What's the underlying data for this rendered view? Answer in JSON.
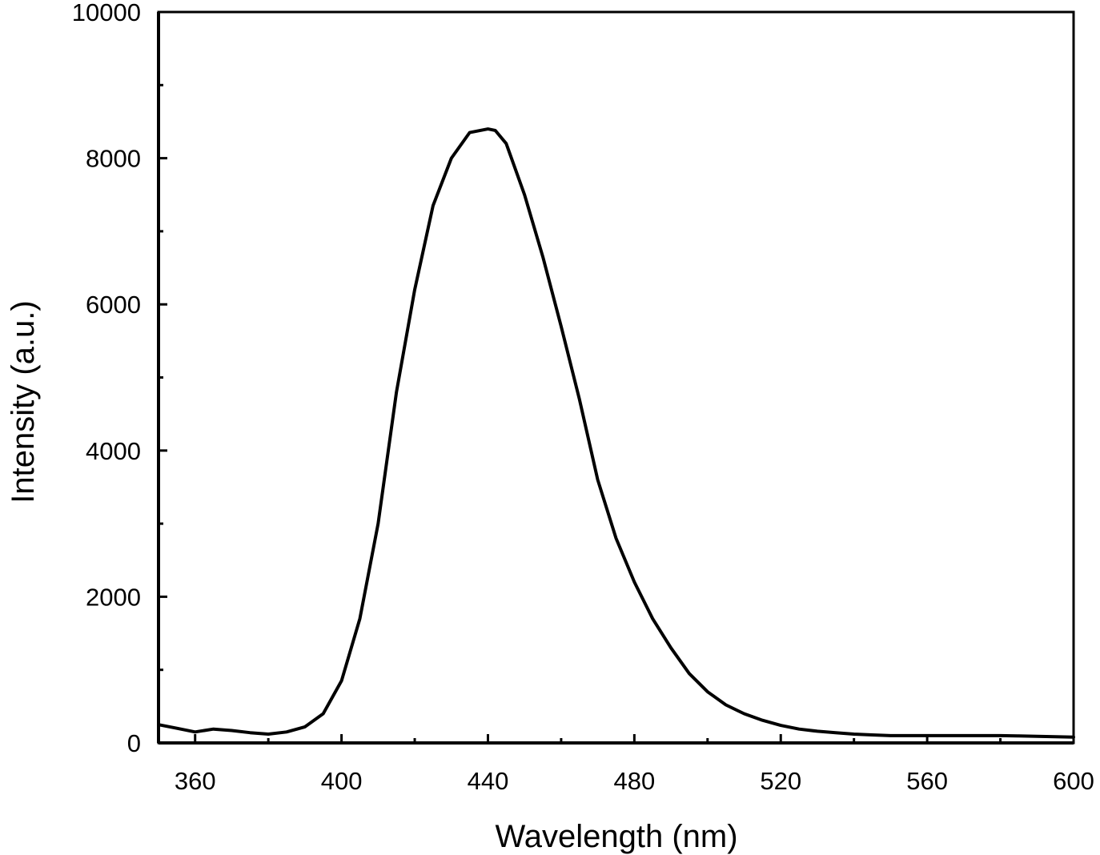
{
  "chart_data": {
    "type": "line",
    "title": "",
    "xlabel": "Wavelength (nm)",
    "ylabel": "Intensity (a.u.)",
    "xlim": [
      350,
      600
    ],
    "ylim": [
      0,
      10000
    ],
    "x_ticks": [
      360,
      400,
      440,
      480,
      520,
      560,
      600
    ],
    "x_tick_labels": [
      "360",
      "400",
      "440",
      "480",
      "520",
      "560",
      "600"
    ],
    "y_ticks": [
      0,
      2000,
      4000,
      6000,
      8000,
      10000
    ],
    "y_tick_labels": [
      "0",
      "2000",
      "4000",
      "6000",
      "8000",
      "10000"
    ],
    "grid": false,
    "line_color": "#000000",
    "series": [
      {
        "x": [
          350,
          355,
          360,
          365,
          370,
          375,
          380,
          385,
          390,
          395,
          400,
          405,
          410,
          415,
          420,
          425,
          430,
          435,
          440,
          442,
          445,
          450,
          455,
          460,
          465,
          470,
          475,
          480,
          485,
          490,
          495,
          500,
          505,
          510,
          515,
          520,
          525,
          530,
          535,
          540,
          545,
          550,
          555,
          560,
          565,
          570,
          575,
          580,
          585,
          590,
          595,
          600
        ],
        "y": [
          250,
          200,
          150,
          190,
          170,
          140,
          120,
          150,
          220,
          400,
          850,
          1700,
          3000,
          4800,
          6200,
          7350,
          8000,
          8350,
          8400,
          8380,
          8200,
          7500,
          6650,
          5700,
          4700,
          3600,
          2800,
          2200,
          1700,
          1300,
          950,
          700,
          520,
          400,
          310,
          240,
          190,
          160,
          140,
          120,
          110,
          100,
          100,
          100,
          100,
          100,
          100,
          100,
          95,
          90,
          85,
          80
        ]
      }
    ]
  }
}
